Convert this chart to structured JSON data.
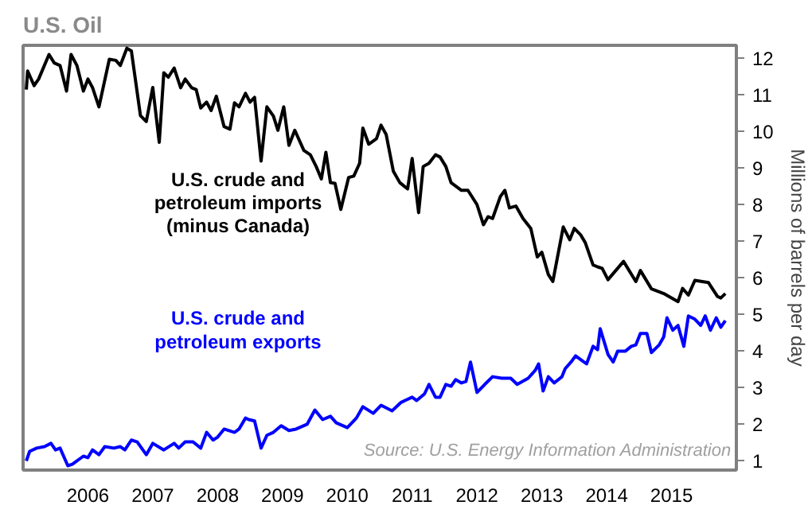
{
  "chart_data": {
    "type": "line",
    "title": "U.S. Oil",
    "ylabel": "Millions of barrels per day",
    "xlim": [
      2005,
      2016
    ],
    "xticks": [
      2006,
      2007,
      2008,
      2009,
      2010,
      2011,
      2012,
      2013,
      2014,
      2015
    ],
    "ylim": [
      0.75,
      12.35
    ],
    "yticks": [
      1,
      2,
      3,
      4,
      5,
      6,
      7,
      8,
      9,
      10,
      11,
      12
    ],
    "grid": false,
    "legend": false,
    "line_style": "solid",
    "marker": "none",
    "annotations": [
      "Source: U.S. Energy Information Administration"
    ],
    "series": [
      {
        "name": "U.S. crude and\npetroleum imports\n(minus Canada)",
        "color": "#000000",
        "x": [
          2005.05,
          2005.07,
          2005.17,
          2005.24,
          2005.4,
          2005.48,
          2005.57,
          2005.67,
          2005.74,
          2005.83,
          2005.93,
          2006.0,
          2006.07,
          2006.17,
          2006.33,
          2006.43,
          2006.5,
          2006.6,
          2006.67,
          2006.81,
          2006.9,
          2007.0,
          2007.1,
          2007.17,
          2007.24,
          2007.33,
          2007.43,
          2007.5,
          2007.6,
          2007.67,
          2007.74,
          2007.83,
          2007.9,
          2007.98,
          2008.1,
          2008.19,
          2008.26,
          2008.33,
          2008.43,
          2008.5,
          2008.57,
          2008.67,
          2008.76,
          2008.86,
          2008.93,
          2009.02,
          2009.1,
          2009.19,
          2009.33,
          2009.43,
          2009.52,
          2009.6,
          2009.67,
          2009.74,
          2009.81,
          2009.9,
          2010.02,
          2010.1,
          2010.19,
          2010.24,
          2010.33,
          2010.45,
          2010.52,
          2010.6,
          2010.71,
          2010.81,
          2010.93,
          2011.0,
          2011.1,
          2011.17,
          2011.26,
          2011.36,
          2011.43,
          2011.52,
          2011.6,
          2011.76,
          2011.86,
          2012.0,
          2012.1,
          2012.17,
          2012.24,
          2012.36,
          2012.43,
          2012.5,
          2012.6,
          2012.71,
          2012.83,
          2012.93,
          2013.0,
          2013.1,
          2013.17,
          2013.33,
          2013.43,
          2013.5,
          2013.6,
          2013.67,
          2013.79,
          2013.86,
          2013.93,
          2014.02,
          2014.26,
          2014.45,
          2014.52,
          2014.69,
          2014.88,
          2015.1,
          2015.17,
          2015.26,
          2015.36,
          2015.57,
          2015.71,
          2015.76,
          2015.83
        ],
        "values": [
          11.14,
          11.65,
          11.25,
          11.43,
          12.1,
          11.87,
          11.8,
          11.1,
          12.1,
          11.8,
          11.1,
          11.43,
          11.2,
          10.67,
          11.97,
          11.94,
          11.8,
          12.27,
          12.2,
          10.43,
          10.27,
          11.2,
          9.7,
          11.6,
          11.48,
          11.73,
          11.19,
          11.43,
          11.19,
          11.14,
          10.64,
          10.8,
          10.57,
          10.96,
          10.13,
          10.06,
          10.78,
          10.67,
          11.04,
          10.8,
          10.93,
          9.19,
          10.67,
          10.42,
          10.03,
          10.67,
          9.62,
          10.03,
          9.48,
          9.36,
          9.04,
          8.7,
          9.43,
          8.6,
          8.58,
          7.87,
          8.74,
          8.78,
          9.13,
          10.09,
          9.65,
          9.8,
          10.17,
          9.91,
          8.91,
          8.6,
          8.43,
          9.26,
          7.78,
          9.04,
          9.13,
          9.36,
          9.3,
          9.04,
          8.6,
          8.39,
          8.39,
          8.0,
          7.45,
          7.67,
          7.62,
          8.22,
          8.39,
          7.91,
          7.96,
          7.62,
          7.35,
          6.57,
          6.7,
          6.09,
          5.9,
          7.39,
          7.04,
          7.35,
          7.17,
          6.96,
          6.35,
          6.3,
          6.26,
          5.95,
          6.45,
          5.9,
          6.2,
          5.7,
          5.57,
          5.35,
          5.71,
          5.53,
          5.93,
          5.87,
          5.49,
          5.45,
          5.57
        ]
      },
      {
        "name": "U.S. crude and\npetroleum exports",
        "color": "#0000ff",
        "x": [
          2005.05,
          2005.1,
          2005.21,
          2005.33,
          2005.43,
          2005.5,
          2005.57,
          2005.69,
          2005.76,
          2005.93,
          2006.0,
          2006.07,
          2006.17,
          2006.26,
          2006.4,
          2006.5,
          2006.57,
          2006.67,
          2006.76,
          2006.9,
          2007.0,
          2007.17,
          2007.33,
          2007.4,
          2007.5,
          2007.62,
          2007.74,
          2007.83,
          2007.93,
          2008.0,
          2008.1,
          2008.26,
          2008.33,
          2008.43,
          2008.48,
          2008.57,
          2008.67,
          2008.76,
          2008.86,
          2008.98,
          2009.1,
          2009.21,
          2009.38,
          2009.5,
          2009.62,
          2009.74,
          2009.83,
          2010.0,
          2010.14,
          2010.24,
          2010.4,
          2010.52,
          2010.69,
          2010.83,
          2011.0,
          2011.07,
          2011.19,
          2011.26,
          2011.36,
          2011.43,
          2011.52,
          2011.6,
          2011.67,
          2011.76,
          2011.83,
          2011.9,
          2012.0,
          2012.12,
          2012.24,
          2012.38,
          2012.52,
          2012.62,
          2012.79,
          2012.9,
          2012.95,
          2013.02,
          2013.1,
          2013.19,
          2013.31,
          2013.36,
          2013.45,
          2013.52,
          2013.62,
          2013.69,
          2013.79,
          2013.86,
          2013.9,
          2014.02,
          2014.1,
          2014.17,
          2014.29,
          2014.38,
          2014.45,
          2014.52,
          2014.62,
          2014.69,
          2014.81,
          2014.88,
          2014.93,
          2015.02,
          2015.1,
          2015.19,
          2015.26,
          2015.36,
          2015.45,
          2015.52,
          2015.6,
          2015.69,
          2015.76,
          2015.83
        ],
        "values": [
          1.0,
          1.26,
          1.35,
          1.39,
          1.48,
          1.3,
          1.35,
          0.87,
          0.91,
          1.13,
          1.09,
          1.3,
          1.17,
          1.39,
          1.35,
          1.39,
          1.3,
          1.57,
          1.52,
          1.17,
          1.48,
          1.3,
          1.48,
          1.35,
          1.52,
          1.52,
          1.35,
          1.78,
          1.57,
          1.65,
          1.87,
          1.78,
          1.87,
          2.17,
          2.13,
          2.09,
          1.35,
          1.7,
          1.78,
          1.96,
          1.83,
          1.87,
          2.0,
          2.39,
          2.13,
          2.22,
          2.04,
          1.91,
          2.17,
          2.48,
          2.3,
          2.52,
          2.37,
          2.6,
          2.74,
          2.65,
          2.83,
          3.09,
          2.74,
          2.74,
          3.09,
          3.04,
          3.22,
          3.13,
          3.17,
          3.7,
          2.87,
          3.09,
          3.3,
          3.26,
          3.26,
          3.09,
          3.26,
          3.48,
          3.65,
          2.91,
          3.3,
          3.13,
          3.3,
          3.52,
          3.7,
          3.87,
          3.74,
          3.65,
          4.13,
          4.04,
          4.61,
          3.91,
          3.7,
          4.0,
          4.0,
          4.13,
          4.17,
          4.48,
          4.48,
          3.96,
          4.17,
          4.39,
          4.91,
          4.57,
          4.7,
          4.13,
          4.96,
          4.87,
          4.7,
          4.96,
          4.57,
          4.91,
          4.65,
          4.83
        ]
      }
    ]
  }
}
